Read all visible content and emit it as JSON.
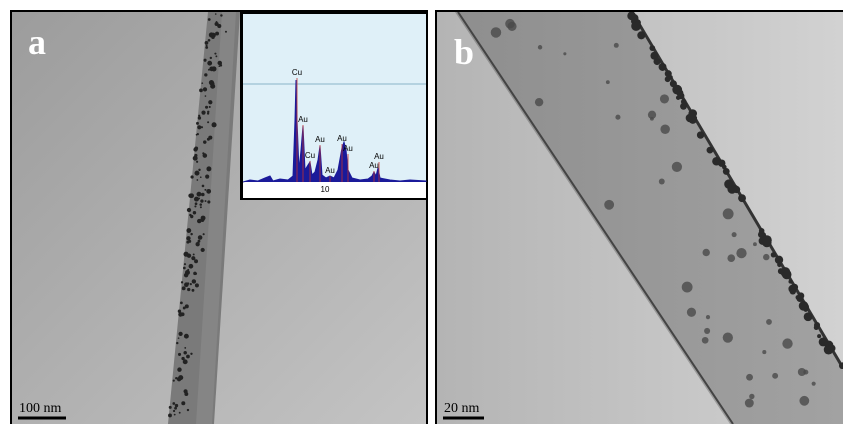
{
  "panels": [
    {
      "label": "a",
      "scale_bar": "100 nm",
      "inset": {
        "peak_labels": [
          "Cu",
          "Au",
          "Cu",
          "Au",
          "Au",
          "Au",
          "Au",
          "Au",
          "Au"
        ],
        "axis_label": "10"
      }
    },
    {
      "label": "b",
      "scale_bar": "20 nm"
    }
  ]
}
